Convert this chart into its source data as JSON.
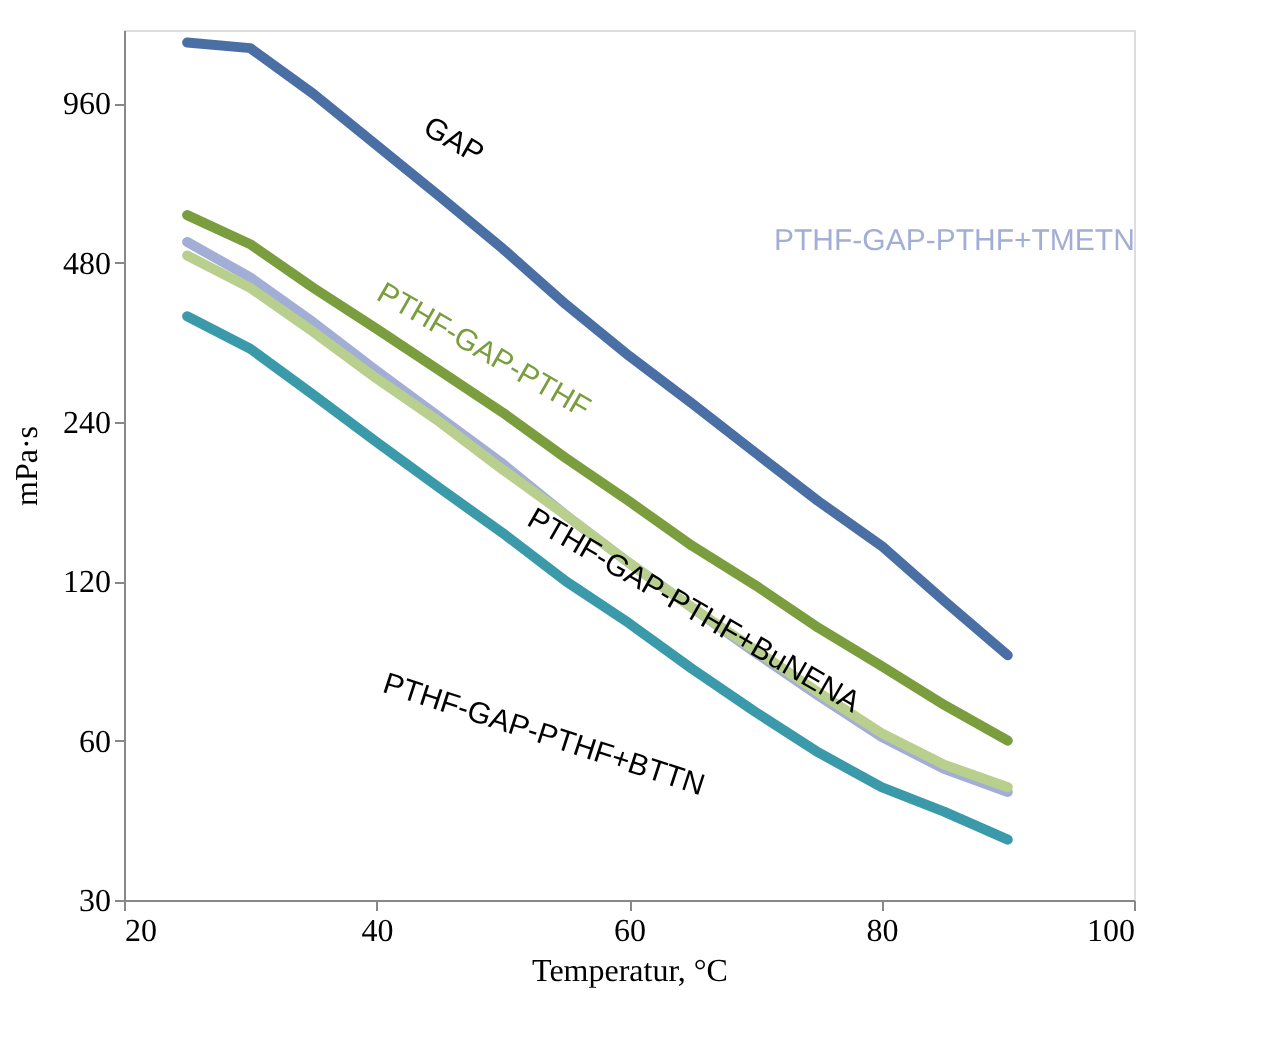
{
  "chart_data": {
    "type": "line",
    "xlabel": "Temperatur, °C",
    "ylabel": "mPa·s",
    "log": "y",
    "xlim": [
      20,
      100
    ],
    "xticks": [
      20,
      40,
      60,
      80,
      100
    ],
    "ylim": [
      30,
      1320
    ],
    "yticks": [
      30,
      60,
      120,
      240,
      480,
      960
    ],
    "grid": false,
    "marker": "none",
    "line_style": "solid",
    "x": [
      25,
      30,
      35,
      40,
      45,
      50,
      55,
      60,
      65,
      70,
      75,
      80,
      85,
      90
    ],
    "series": [
      {
        "name": "GAP",
        "color": "#4a6fa5",
        "values": [
          1250,
          1220,
          1000,
          800,
          640,
          510,
          400,
          320,
          260,
          210,
          170,
          140,
          110,
          87
        ]
      },
      {
        "name": "PTHF-GAP-PTHF",
        "color": "#7a9e3e",
        "values": [
          590,
          520,
          430,
          360,
          300,
          250,
          205,
          170,
          140,
          118,
          98,
          83,
          70,
          60
        ]
      },
      {
        "name": "PTHF-GAP-PTHF+TMETN",
        "color": "#a3aed6",
        "values": [
          525,
          450,
          370,
          300,
          245,
          200,
          160,
          130,
          107,
          88,
          73,
          61,
          53,
          48
        ]
      },
      {
        "name": "PTHF-GAP-PTHF+BuNENA",
        "color": "#b9cf8e",
        "values": [
          495,
          430,
          355,
          290,
          240,
          195,
          160,
          130,
          107,
          89,
          74,
          62,
          54,
          49
        ]
      },
      {
        "name": "PTHF-GAP-PTHF+BTTN",
        "color": "#3b9aaa",
        "values": [
          380,
          330,
          270,
          220,
          180,
          148,
          120,
          100,
          82,
          68,
          57,
          49,
          44,
          39
        ]
      }
    ]
  }
}
